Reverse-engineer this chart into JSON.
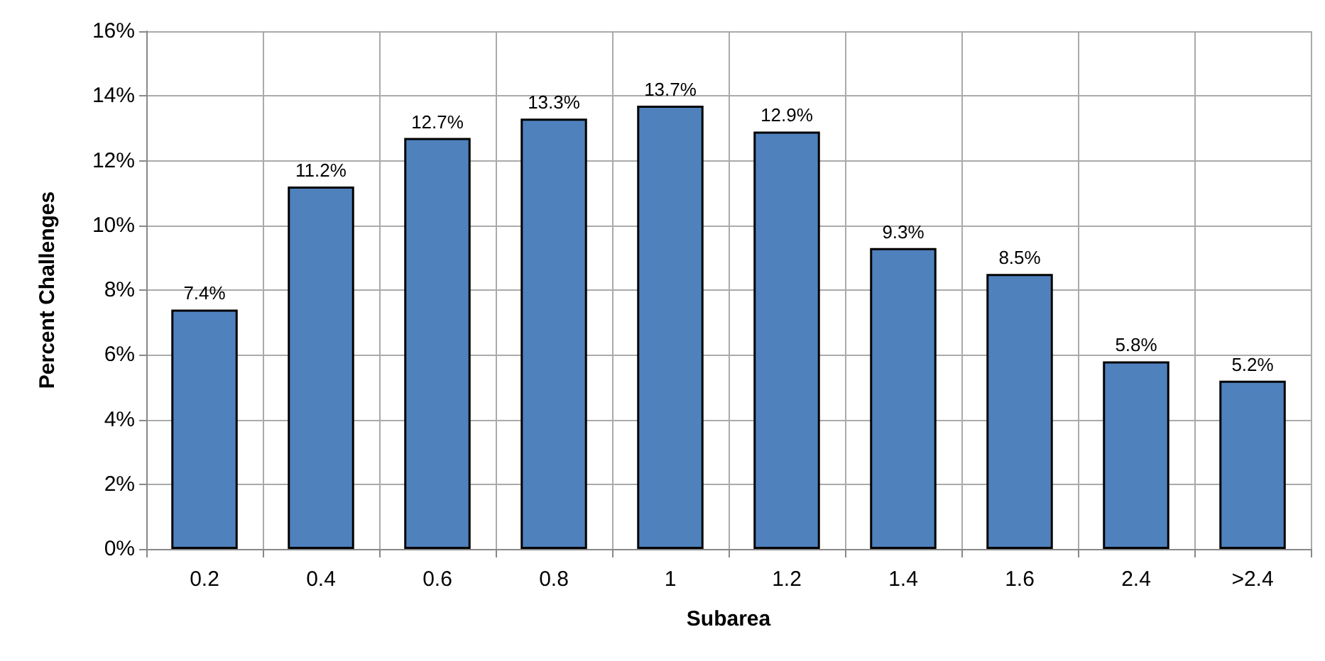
{
  "chart_data": {
    "type": "bar",
    "xlabel": "Subarea",
    "ylabel": "Percent Challenges",
    "categories": [
      "0.2",
      "0.4",
      "0.6",
      "0.8",
      "1",
      "1.2",
      "1.4",
      "1.6",
      "2.4",
      ">2.4"
    ],
    "values": [
      7.4,
      11.2,
      12.7,
      13.3,
      13.7,
      12.9,
      9.3,
      8.5,
      5.8,
      5.2
    ],
    "value_labels": [
      "7.4%",
      "11.2%",
      "12.7%",
      "13.3%",
      "13.7%",
      "12.9%",
      "9.3%",
      "8.5%",
      "5.8%",
      "5.2%"
    ],
    "color": "#4f81bd",
    "ylim": [
      0,
      16
    ],
    "yticks": [
      {
        "value": 0,
        "label": "0%"
      },
      {
        "value": 2,
        "label": "2%"
      },
      {
        "value": 4,
        "label": "4%"
      },
      {
        "value": 6,
        "label": "6%"
      },
      {
        "value": 8,
        "label": "8%"
      },
      {
        "value": 10,
        "label": "10%"
      },
      {
        "value": 12,
        "label": "12%"
      },
      {
        "value": 14,
        "label": "14%"
      },
      {
        "value": 16,
        "label": "16%"
      }
    ],
    "grid": true
  }
}
